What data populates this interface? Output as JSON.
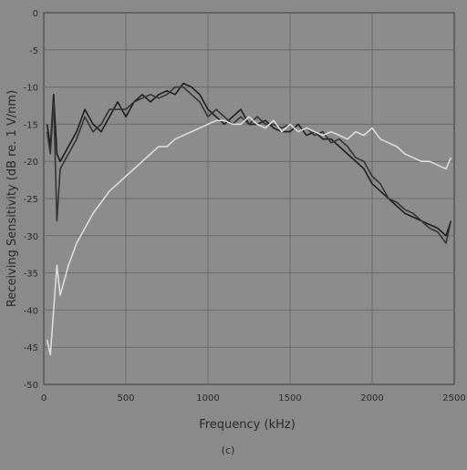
{
  "chart_data": {
    "type": "line",
    "title": "",
    "xlabel": "Frequency (kHz)",
    "ylabel": "Receiving Sensitivity (dB re. 1 V/nm)",
    "caption": "(c)",
    "xlim": [
      0,
      2500
    ],
    "ylim": [
      -50,
      0
    ],
    "xticks": [
      0,
      500,
      1000,
      1500,
      2000,
      2500
    ],
    "yticks": [
      0,
      -5,
      -10,
      -15,
      -20,
      -25,
      -30,
      -35,
      -40,
      -45,
      -50
    ],
    "grid": true,
    "legend": "none",
    "series": [
      {
        "x": [
          20,
          40,
          60,
          80,
          100,
          150,
          200,
          250,
          300,
          350,
          400,
          450,
          500,
          550,
          600,
          650,
          700,
          750,
          800,
          850,
          900,
          950,
          1000,
          1050,
          1100,
          1150,
          1200,
          1250,
          1300,
          1350,
          1400,
          1450,
          1500,
          1550,
          1600,
          1650,
          1700,
          1750,
          1800,
          1850,
          1900,
          1950,
          2000,
          2050,
          2100,
          2150,
          2200,
          2250,
          2300,
          2350,
          2400,
          2450,
          2480
        ],
        "values": [
          -15,
          -18,
          -11,
          -19,
          -20,
          -18,
          -16,
          -13,
          -15,
          -16,
          -14,
          -12,
          -14,
          -12,
          -11,
          -12,
          -11,
          -10.5,
          -11,
          -9.5,
          -10,
          -11,
          -13,
          -14,
          -15,
          -14,
          -13,
          -15,
          -15,
          -14.5,
          -15.5,
          -16,
          -16,
          -15,
          -16.5,
          -16,
          -17,
          -17,
          -18,
          -19,
          -20,
          -21,
          -23,
          -24,
          -25,
          -26,
          -27,
          -27.5,
          -28,
          -28.5,
          -29,
          -30,
          -28
        ]
      },
      {
        "x": [
          20,
          40,
          60,
          80,
          100,
          150,
          200,
          250,
          300,
          350,
          400,
          450,
          500,
          550,
          600,
          650,
          700,
          750,
          800,
          850,
          900,
          950,
          1000,
          1050,
          1100,
          1150,
          1200,
          1250,
          1300,
          1350,
          1400,
          1450,
          1500,
          1550,
          1600,
          1650,
          1700,
          1750,
          1800,
          1850,
          1900,
          1950,
          2000,
          2050,
          2100,
          2150,
          2200,
          2250,
          2300,
          2350,
          2400,
          2450,
          2480
        ],
        "values": [
          -16,
          -19,
          -12,
          -28,
          -21,
          -19,
          -17,
          -14,
          -16,
          -15,
          -13,
          -13,
          -13,
          -12,
          -11.5,
          -11,
          -11.5,
          -11,
          -10,
          -10,
          -11,
          -12,
          -14,
          -13,
          -14,
          -15,
          -14,
          -15,
          -14,
          -15,
          -15,
          -15.5,
          -15,
          -16,
          -15.5,
          -16.5,
          -16,
          -17.5,
          -17,
          -18,
          -19.5,
          -20,
          -22,
          -23,
          -25,
          -25.5,
          -26.5,
          -27,
          -28,
          -29,
          -29.5,
          -31,
          -28
        ]
      },
      {
        "x": [
          20,
          40,
          60,
          80,
          100,
          150,
          200,
          250,
          300,
          350,
          400,
          450,
          500,
          550,
          600,
          650,
          700,
          750,
          800,
          850,
          900,
          950,
          1000,
          1050,
          1100,
          1150,
          1200,
          1250,
          1300,
          1350,
          1400,
          1450,
          1500,
          1550,
          1600,
          1650,
          1700,
          1750,
          1800,
          1850,
          1900,
          1950,
          2000,
          2050,
          2100,
          2150,
          2200,
          2250,
          2300,
          2350,
          2400,
          2450,
          2480
        ],
        "values": [
          -44,
          -46,
          -40,
          -34,
          -38,
          -34,
          -31,
          -29,
          -27,
          -25.5,
          -24,
          -23,
          -22,
          -21,
          -20,
          -19,
          -18,
          -18,
          -17,
          -16.5,
          -16,
          -15.5,
          -15,
          -14.5,
          -14.5,
          -15,
          -15,
          -14,
          -15,
          -15.5,
          -14.5,
          -16,
          -15,
          -16,
          -15.5,
          -16,
          -16.5,
          -16,
          -16.5,
          -17,
          -16,
          -16.5,
          -15.5,
          -17,
          -17.5,
          -18,
          -19,
          -19.5,
          -20,
          -20,
          -20.5,
          -21,
          -19.5
        ]
      }
    ]
  }
}
